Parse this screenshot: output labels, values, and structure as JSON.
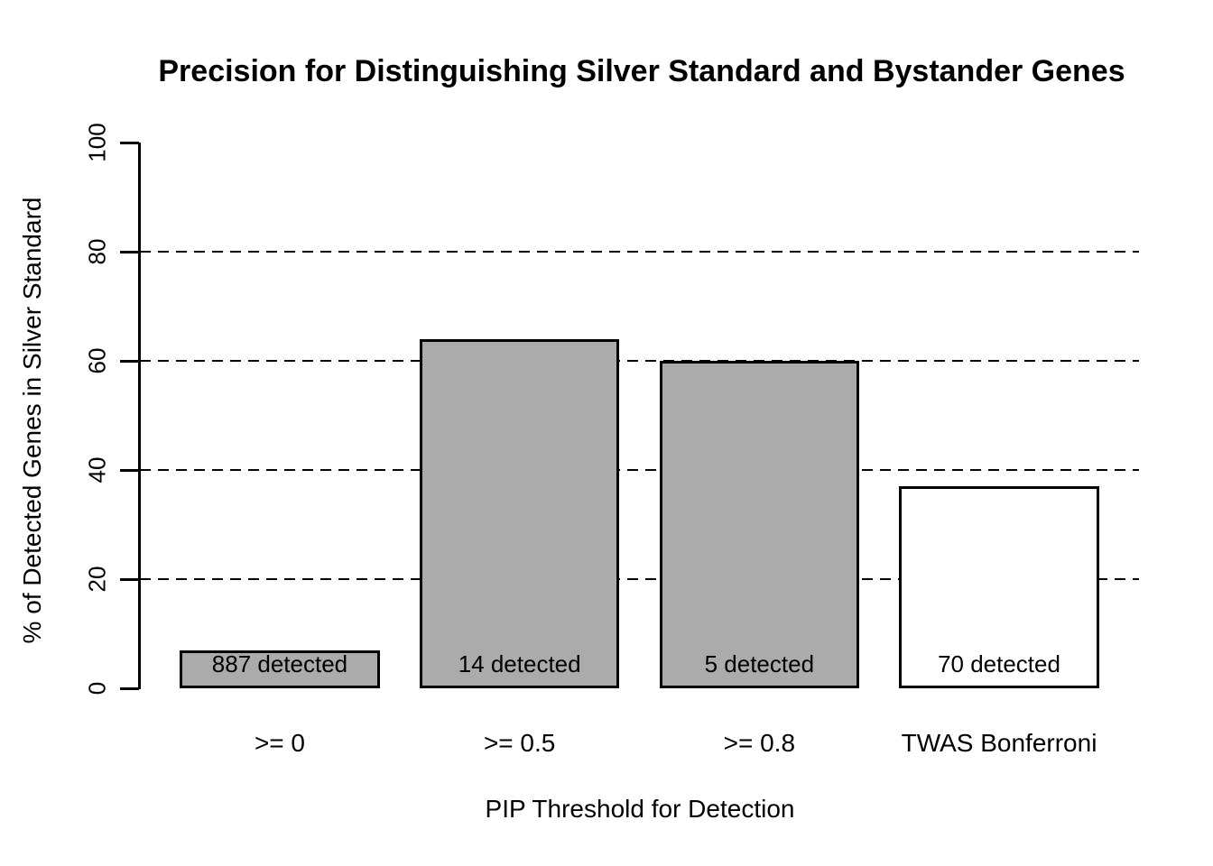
{
  "chart_data": {
    "type": "bar",
    "title": "Precision for Distinguishing Silver Standard and Bystander Genes",
    "xlabel": "PIP Threshold for Detection",
    "ylabel": "% of Detected Genes in Silver Standard",
    "categories": [
      ">= 0",
      ">= 0.5",
      ">= 0.8",
      "TWAS Bonferroni"
    ],
    "values": [
      7,
      64,
      60,
      37
    ],
    "bar_labels": [
      "887 detected",
      "14 detected",
      "5 detected",
      "70 detected"
    ],
    "bar_fill_colors": [
      "#ababab",
      "#ababab",
      "#ababab",
      "#ffffff"
    ],
    "bar_border_color": "#000000",
    "yticks": [
      0,
      20,
      40,
      60,
      80,
      100
    ],
    "ylim": [
      0,
      100
    ],
    "gridlines_at": [
      20,
      40,
      60,
      80
    ],
    "gridline_style": "dashed",
    "grid": true,
    "legend_position": "none",
    "text_color": "#000000",
    "background_color": "#ffffff"
  }
}
